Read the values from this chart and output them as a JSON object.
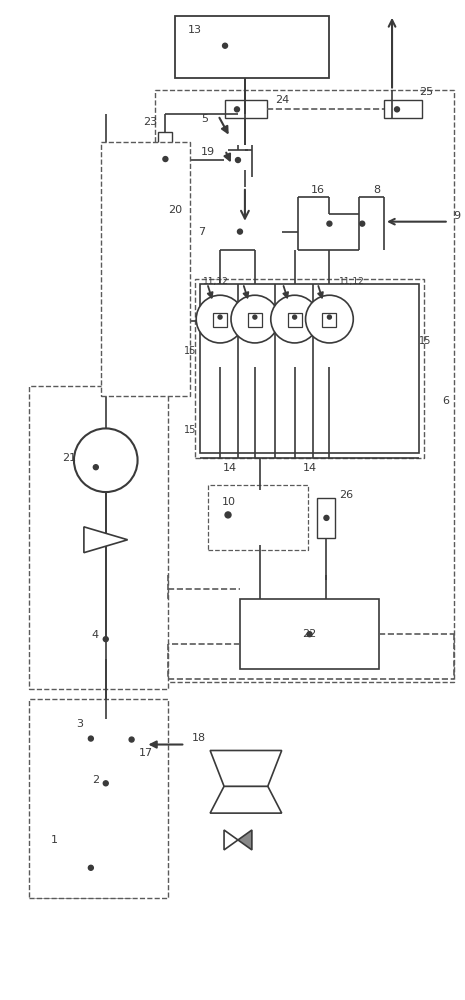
{
  "bg_color": "#ffffff",
  "lc": "#3a3a3a",
  "dc": "#5a5a5a",
  "fig_width": 4.65,
  "fig_height": 10.0,
  "dpi": 100
}
